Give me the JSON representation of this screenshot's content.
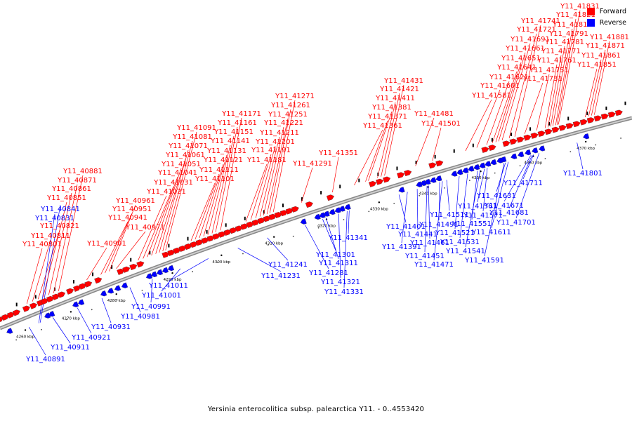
{
  "caption": "Yersinia enterocolitica subsp. palearctica Y11. - 0..4553420",
  "legend": [
    {
      "label": "Forward",
      "color": "#ff0000"
    },
    {
      "label": "Reverse",
      "color": "#0000ff"
    }
  ],
  "scale_labels": [
    "4260 kbp",
    "4270 kbp",
    "4280 kbp",
    "4290 kbp",
    "4300 kbp",
    "4310 kbp",
    "4320 kbp",
    "4330 kbp",
    "4340 kbp",
    "4350 kbp",
    "4360 kbp",
    "4370 kbp"
  ],
  "genes": [
    {
      "id": "Y11_40801",
      "strand": "forward"
    },
    {
      "id": "Y11_40811",
      "strand": "forward"
    },
    {
      "id": "Y11_40821",
      "strand": "forward"
    },
    {
      "id": "Y11_40831",
      "strand": "reverse"
    },
    {
      "id": "Y11_40841",
      "strand": "reverse"
    },
    {
      "id": "Y11_40851",
      "strand": "forward"
    },
    {
      "id": "Y11_40861",
      "strand": "forward"
    },
    {
      "id": "Y11_40871",
      "strand": "forward"
    },
    {
      "id": "Y11_40881",
      "strand": "forward"
    },
    {
      "id": "Y11_40891",
      "strand": "reverse"
    },
    {
      "id": "Y11_40901",
      "strand": "forward"
    },
    {
      "id": "Y11_40911",
      "strand": "reverse"
    },
    {
      "id": "Y11_40921",
      "strand": "reverse"
    },
    {
      "id": "Y11_40931",
      "strand": "reverse"
    },
    {
      "id": "Y11_40941",
      "strand": "forward"
    },
    {
      "id": "Y11_40951",
      "strand": "forward"
    },
    {
      "id": "Y11_40961",
      "strand": "forward"
    },
    {
      "id": "Y11_40971",
      "strand": "forward"
    },
    {
      "id": "Y11_40981",
      "strand": "reverse"
    },
    {
      "id": "Y11_40991",
      "strand": "reverse"
    },
    {
      "id": "Y11_41001",
      "strand": "reverse"
    },
    {
      "id": "Y11_41011",
      "strand": "reverse"
    },
    {
      "id": "Y11_41021",
      "strand": "forward"
    },
    {
      "id": "Y11_41031",
      "strand": "forward"
    },
    {
      "id": "Y11_41041",
      "strand": "forward"
    },
    {
      "id": "Y11_41051",
      "strand": "forward"
    },
    {
      "id": "Y11_41061",
      "strand": "forward"
    },
    {
      "id": "Y11_41071",
      "strand": "forward"
    },
    {
      "id": "Y11_41081",
      "strand": "forward"
    },
    {
      "id": "Y11_41091",
      "strand": "forward"
    },
    {
      "id": "Y11_41101",
      "strand": "forward"
    },
    {
      "id": "Y11_41111",
      "strand": "forward"
    },
    {
      "id": "Y11_41121",
      "strand": "forward"
    },
    {
      "id": "Y11_41131",
      "strand": "forward"
    },
    {
      "id": "Y11_41141",
      "strand": "forward"
    },
    {
      "id": "Y11_41151",
      "strand": "forward"
    },
    {
      "id": "Y11_41161",
      "strand": "forward"
    },
    {
      "id": "Y11_41171",
      "strand": "forward"
    },
    {
      "id": "Y11_41181",
      "strand": "forward"
    },
    {
      "id": "Y11_41191",
      "strand": "forward"
    },
    {
      "id": "Y11_41201",
      "strand": "forward"
    },
    {
      "id": "Y11_41211",
      "strand": "forward"
    },
    {
      "id": "Y11_41221",
      "strand": "forward"
    },
    {
      "id": "Y11_41231",
      "strand": "reverse"
    },
    {
      "id": "Y11_41241",
      "strand": "reverse"
    },
    {
      "id": "Y11_41251",
      "strand": "forward"
    },
    {
      "id": "Y11_41261",
      "strand": "forward"
    },
    {
      "id": "Y11_41271",
      "strand": "forward"
    },
    {
      "id": "Y11_41281",
      "strand": "reverse"
    },
    {
      "id": "Y11_41291",
      "strand": "forward"
    },
    {
      "id": "Y11_41301",
      "strand": "reverse"
    },
    {
      "id": "Y11_41311",
      "strand": "reverse"
    },
    {
      "id": "Y11_41321",
      "strand": "reverse"
    },
    {
      "id": "Y11_41331",
      "strand": "reverse"
    },
    {
      "id": "Y11_41341",
      "strand": "reverse"
    },
    {
      "id": "Y11_41351",
      "strand": "forward"
    },
    {
      "id": "Y11_41361",
      "strand": "forward"
    },
    {
      "id": "Y11_41371",
      "strand": "forward"
    },
    {
      "id": "Y11_41381",
      "strand": "forward"
    },
    {
      "id": "Y11_41391",
      "strand": "reverse"
    },
    {
      "id": "Y11_41401",
      "strand": "reverse"
    },
    {
      "id": "Y11_41411",
      "strand": "forward"
    },
    {
      "id": "Y11_41421",
      "strand": "forward"
    },
    {
      "id": "Y11_41431",
      "strand": "forward"
    },
    {
      "id": "Y11_41441",
      "strand": "reverse"
    },
    {
      "id": "Y11_41451",
      "strand": "reverse"
    },
    {
      "id": "Y11_41461",
      "strand": "reverse"
    },
    {
      "id": "Y11_41471",
      "strand": "reverse"
    },
    {
      "id": "Y11_41481",
      "strand": "forward"
    },
    {
      "id": "Y11_41491",
      "strand": "reverse"
    },
    {
      "id": "Y11_41501",
      "strand": "forward"
    },
    {
      "id": "Y11_41511",
      "strand": "reverse"
    },
    {
      "id": "Y11_41521",
      "strand": "reverse"
    },
    {
      "id": "Y11_41531",
      "strand": "reverse"
    },
    {
      "id": "Y11_41541",
      "strand": "reverse"
    },
    {
      "id": "Y11_41551",
      "strand": "reverse"
    },
    {
      "id": "Y11_41561",
      "strand": "reverse"
    },
    {
      "id": "Y11_41571",
      "strand": "reverse"
    },
    {
      "id": "Y11_41581",
      "strand": "forward"
    },
    {
      "id": "Y11_41591",
      "strand": "reverse"
    },
    {
      "id": "Y11_41601",
      "strand": "forward"
    },
    {
      "id": "Y11_41611",
      "strand": "reverse"
    },
    {
      "id": "Y11_41621",
      "strand": "forward"
    },
    {
      "id": "Y11_41631",
      "strand": "reverse"
    },
    {
      "id": "Y11_41641",
      "strand": "forward"
    },
    {
      "id": "Y11_41651",
      "strand": "forward"
    },
    {
      "id": "Y11_41661",
      "strand": "forward"
    },
    {
      "id": "Y11_41671",
      "strand": "reverse"
    },
    {
      "id": "Y11_41681",
      "strand": "reverse"
    },
    {
      "id": "Y11_41691",
      "strand": "forward"
    },
    {
      "id": "Y11_41701",
      "strand": "reverse"
    },
    {
      "id": "Y11_41711",
      "strand": "reverse"
    },
    {
      "id": "Y11_41721",
      "strand": "forward"
    },
    {
      "id": "Y11_41731",
      "strand": "forward"
    },
    {
      "id": "Y11_41741",
      "strand": "forward"
    },
    {
      "id": "Y11_41751",
      "strand": "forward"
    },
    {
      "id": "Y11_41761",
      "strand": "forward"
    },
    {
      "id": "Y11_41771",
      "strand": "forward"
    },
    {
      "id": "Y11_41781",
      "strand": "forward"
    },
    {
      "id": "Y11_41791",
      "strand": "forward"
    },
    {
      "id": "Y11_41801",
      "strand": "reverse"
    },
    {
      "id": "Y11_41811",
      "strand": "forward"
    },
    {
      "id": "Y11_41821",
      "strand": "forward"
    },
    {
      "id": "Y11_41831",
      "strand": "forward"
    },
    {
      "id": "Y11_41851",
      "strand": "forward"
    },
    {
      "id": "Y11_41861",
      "strand": "forward"
    },
    {
      "id": "Y11_41871",
      "strand": "forward"
    },
    {
      "id": "Y11_41881",
      "strand": "forward"
    }
  ]
}
